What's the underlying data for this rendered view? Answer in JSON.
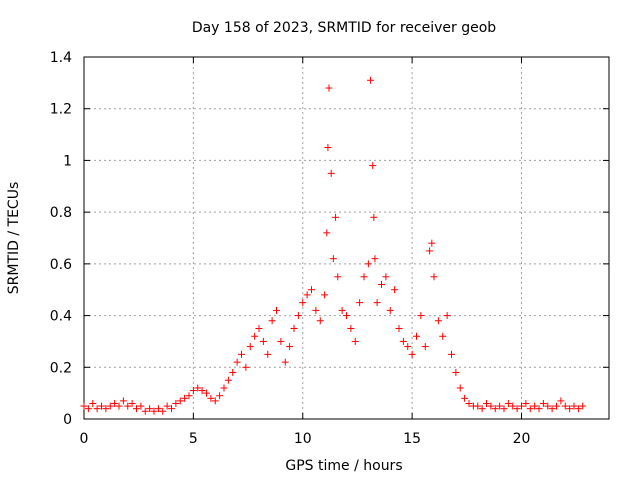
{
  "chart_data": {
    "type": "scatter",
    "title": "Day 158 of 2023, SRMTID for receiver geob",
    "xlabel": "GPS time / hours",
    "ylabel": "SRMTID / TECUs",
    "xlim": [
      0,
      24
    ],
    "ylim": [
      0,
      1.4
    ],
    "x_ticks": [
      0,
      5,
      10,
      15,
      20
    ],
    "x_tick_labels": [
      "0",
      "5",
      "10",
      "15",
      "20"
    ],
    "y_ticks": [
      0,
      0.2,
      0.4,
      0.6,
      0.8,
      1.0,
      1.2,
      1.4
    ],
    "y_tick_labels": [
      "0",
      "0.2",
      "0.4",
      "0.6",
      "0.8",
      "1",
      "1.2",
      "1.4"
    ],
    "grid": true,
    "marker": "plus",
    "color": "#ff0000",
    "series": [
      {
        "name": "SRMTID",
        "points": [
          [
            0.0,
            0.05
          ],
          [
            0.2,
            0.04
          ],
          [
            0.4,
            0.06
          ],
          [
            0.6,
            0.04
          ],
          [
            0.8,
            0.05
          ],
          [
            1.0,
            0.04
          ],
          [
            1.2,
            0.05
          ],
          [
            1.4,
            0.06
          ],
          [
            1.6,
            0.05
          ],
          [
            1.8,
            0.07
          ],
          [
            2.0,
            0.05
          ],
          [
            2.2,
            0.06
          ],
          [
            2.4,
            0.04
          ],
          [
            2.6,
            0.05
          ],
          [
            2.8,
            0.03
          ],
          [
            3.0,
            0.04
          ],
          [
            3.2,
            0.03
          ],
          [
            3.4,
            0.04
          ],
          [
            3.6,
            0.03
          ],
          [
            3.8,
            0.05
          ],
          [
            4.0,
            0.04
          ],
          [
            4.2,
            0.06
          ],
          [
            4.4,
            0.07
          ],
          [
            4.6,
            0.08
          ],
          [
            4.8,
            0.09
          ],
          [
            5.0,
            0.11
          ],
          [
            5.2,
            0.12
          ],
          [
            5.4,
            0.11
          ],
          [
            5.6,
            0.1
          ],
          [
            5.8,
            0.08
          ],
          [
            6.0,
            0.07
          ],
          [
            6.2,
            0.09
          ],
          [
            6.4,
            0.12
          ],
          [
            6.6,
            0.15
          ],
          [
            6.8,
            0.18
          ],
          [
            7.0,
            0.22
          ],
          [
            7.2,
            0.25
          ],
          [
            7.4,
            0.2
          ],
          [
            7.6,
            0.28
          ],
          [
            7.8,
            0.32
          ],
          [
            8.0,
            0.35
          ],
          [
            8.2,
            0.3
          ],
          [
            8.4,
            0.25
          ],
          [
            8.6,
            0.38
          ],
          [
            8.8,
            0.42
          ],
          [
            9.0,
            0.3
          ],
          [
            9.2,
            0.22
          ],
          [
            9.4,
            0.28
          ],
          [
            9.6,
            0.35
          ],
          [
            9.8,
            0.4
          ],
          [
            10.0,
            0.45
          ],
          [
            10.2,
            0.48
          ],
          [
            10.4,
            0.5
          ],
          [
            10.6,
            0.42
          ],
          [
            10.8,
            0.38
          ],
          [
            11.0,
            0.48
          ],
          [
            11.1,
            0.72
          ],
          [
            11.15,
            1.05
          ],
          [
            11.2,
            1.28
          ],
          [
            11.3,
            0.95
          ],
          [
            11.4,
            0.62
          ],
          [
            11.5,
            0.78
          ],
          [
            11.6,
            0.55
          ],
          [
            11.8,
            0.42
          ],
          [
            12.0,
            0.4
          ],
          [
            12.2,
            0.35
          ],
          [
            12.4,
            0.3
          ],
          [
            12.6,
            0.45
          ],
          [
            12.8,
            0.55
          ],
          [
            13.0,
            0.6
          ],
          [
            13.1,
            1.31
          ],
          [
            13.2,
            0.98
          ],
          [
            13.25,
            0.78
          ],
          [
            13.3,
            0.62
          ],
          [
            13.4,
            0.45
          ],
          [
            13.6,
            0.52
          ],
          [
            13.8,
            0.55
          ],
          [
            14.0,
            0.42
          ],
          [
            14.2,
            0.5
          ],
          [
            14.4,
            0.35
          ],
          [
            14.6,
            0.3
          ],
          [
            14.8,
            0.28
          ],
          [
            15.0,
            0.25
          ],
          [
            15.2,
            0.32
          ],
          [
            15.4,
            0.4
          ],
          [
            15.6,
            0.28
          ],
          [
            15.8,
            0.65
          ],
          [
            15.9,
            0.68
          ],
          [
            16.0,
            0.55
          ],
          [
            16.2,
            0.38
          ],
          [
            16.4,
            0.32
          ],
          [
            16.6,
            0.4
          ],
          [
            16.8,
            0.25
          ],
          [
            17.0,
            0.18
          ],
          [
            17.2,
            0.12
          ],
          [
            17.4,
            0.08
          ],
          [
            17.6,
            0.06
          ],
          [
            17.8,
            0.05
          ],
          [
            18.0,
            0.05
          ],
          [
            18.2,
            0.04
          ],
          [
            18.4,
            0.06
          ],
          [
            18.6,
            0.05
          ],
          [
            18.8,
            0.04
          ],
          [
            19.0,
            0.05
          ],
          [
            19.2,
            0.04
          ],
          [
            19.4,
            0.06
          ],
          [
            19.6,
            0.05
          ],
          [
            19.8,
            0.04
          ],
          [
            20.0,
            0.05
          ],
          [
            20.2,
            0.06
          ],
          [
            20.4,
            0.04
          ],
          [
            20.6,
            0.05
          ],
          [
            20.8,
            0.04
          ],
          [
            21.0,
            0.06
          ],
          [
            21.2,
            0.05
          ],
          [
            21.4,
            0.04
          ],
          [
            21.6,
            0.05
          ],
          [
            21.8,
            0.07
          ],
          [
            22.0,
            0.05
          ],
          [
            22.2,
            0.04
          ],
          [
            22.4,
            0.05
          ],
          [
            22.6,
            0.04
          ],
          [
            22.8,
            0.05
          ]
        ]
      }
    ]
  }
}
